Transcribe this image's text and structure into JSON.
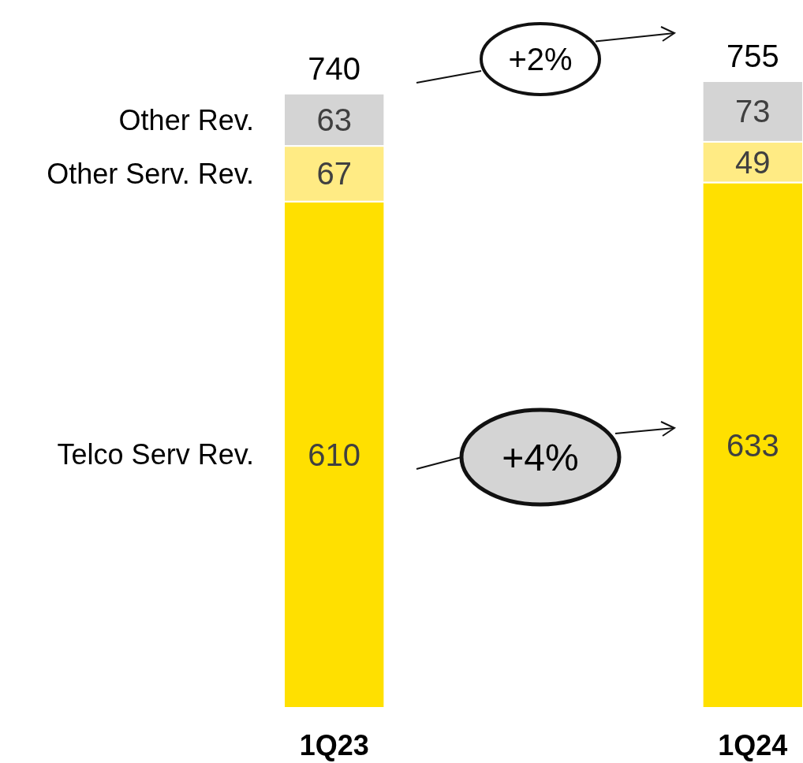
{
  "chart_data": {
    "type": "bar",
    "stacked": true,
    "categories": [
      "1Q23",
      "1Q24"
    ],
    "series": [
      {
        "name": "Telco Serv Rev.",
        "color": "#ffe000",
        "values": [
          610,
          633
        ]
      },
      {
        "name": "Other Serv. Rev.",
        "color": "#ffeb84",
        "values": [
          67,
          49
        ]
      },
      {
        "name": "Other Rev.",
        "color": "#d4d4d4",
        "values": [
          63,
          73
        ]
      }
    ],
    "data_labels": true,
    "totals": [
      "740",
      "755"
    ],
    "annotations": [
      "+2%",
      "+4%"
    ]
  }
}
